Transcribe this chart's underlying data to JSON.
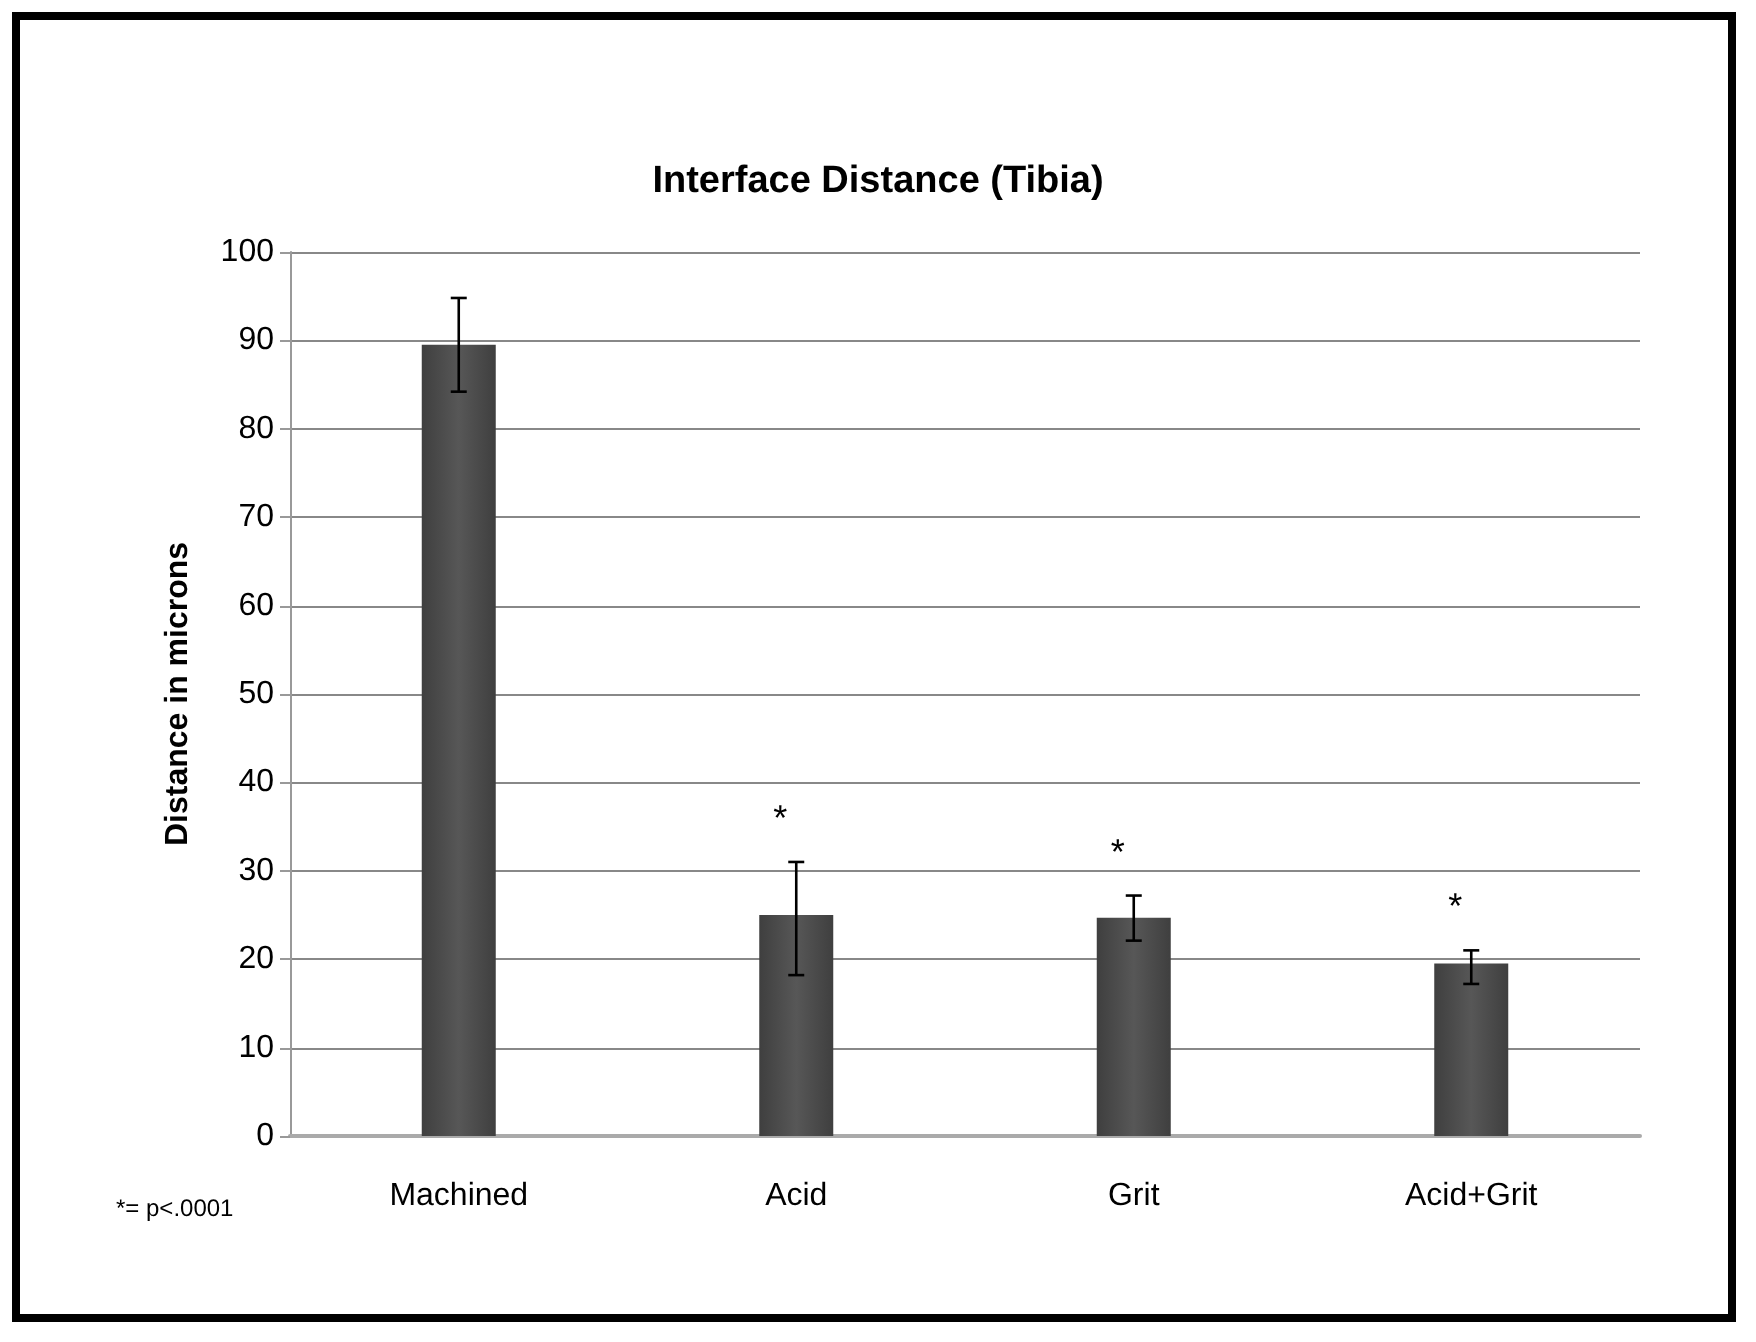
{
  "chart_data": {
    "type": "bar",
    "title": "Interface Distance (Tibia)",
    "ylabel": "Distance in microns",
    "categories": [
      "Machined",
      "Acid",
      "Grit",
      "Acid+Grit"
    ],
    "values": [
      89.5,
      25,
      24.7,
      19.5
    ],
    "errors": [
      [
        84.2,
        94.8
      ],
      [
        18.2,
        31
      ],
      [
        22.1,
        27.2
      ],
      [
        17.2,
        21
      ]
    ],
    "color": "#575757",
    "ylim": [
      0,
      100
    ],
    "yticks": [
      0,
      10,
      20,
      30,
      40,
      50,
      60,
      70,
      80,
      90,
      100
    ],
    "grid": "y",
    "annotations": [
      {
        "text": "*",
        "x": "Acid",
        "y": 25
      },
      {
        "text": "*",
        "x": "Grit",
        "y": 24.7
      },
      {
        "text": "*",
        "x": "Acid+Grit",
        "y": 19.5
      },
      "*= p<.0001"
    ]
  }
}
